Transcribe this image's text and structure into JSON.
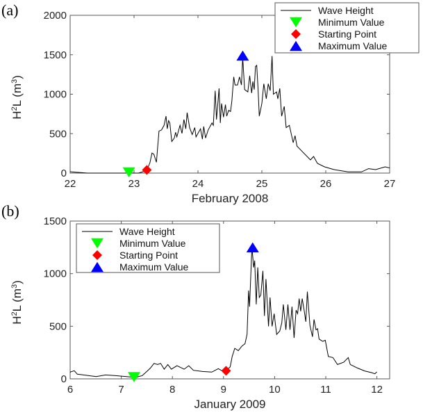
{
  "chart_data": [
    {
      "type": "line",
      "panel_label": "(a)",
      "xlabel": "February 2008",
      "ylabel": "H",
      "ylabel_sup1": "2",
      "ylabel_mid": "L (m",
      "ylabel_sup2": "3",
      "ylabel_end": ")",
      "xlim": [
        22,
        27
      ],
      "ylim": [
        0,
        2000
      ],
      "xticks": [
        22,
        23,
        24,
        25,
        26,
        27
      ],
      "yticks": [
        0,
        500,
        1000,
        1500,
        2000
      ],
      "legend_position": "top-right",
      "legend": [
        "Wave Height",
        "Minimum Value",
        "Starting Point",
        "Maximum Value"
      ],
      "series": [
        {
          "name": "Wave Height",
          "x": [
            22.0,
            22.02,
            22.27,
            22.8,
            23.07,
            23.2,
            23.25,
            23.28,
            23.31,
            23.35,
            23.39,
            23.43,
            23.47,
            23.5,
            23.52,
            23.54,
            23.56,
            23.59,
            23.63,
            23.65,
            23.67,
            23.72,
            23.75,
            23.78,
            23.81,
            23.83,
            23.87,
            23.91,
            23.95,
            23.97,
            24.04,
            24.07,
            24.09,
            24.12,
            24.16,
            24.22,
            24.24,
            24.27,
            24.29,
            24.33,
            24.35,
            24.37,
            24.4,
            24.43,
            24.45,
            24.48,
            24.51,
            24.53,
            24.56,
            24.58,
            24.62,
            24.65,
            24.68,
            24.7,
            24.73,
            24.78,
            24.81,
            24.84,
            24.86,
            24.88,
            24.9,
            24.92,
            24.94,
            24.96,
            25.0,
            25.03,
            25.07,
            25.1,
            25.13,
            25.16,
            25.18,
            25.23,
            25.25,
            25.28,
            25.31,
            25.35,
            25.38,
            25.43,
            25.49,
            25.52,
            25.55,
            25.62,
            25.76,
            25.81,
            25.87,
            25.98,
            26.13,
            26.35,
            26.56,
            26.67,
            26.78,
            26.93,
            27.0
          ],
          "y": [
            20,
            15,
            0,
            0,
            0,
            32,
            137,
            254,
            240,
            137,
            532,
            547,
            605,
            722,
            561,
            664,
            635,
            400,
            444,
            517,
            459,
            605,
            503,
            678,
            561,
            766,
            576,
            488,
            576,
            459,
            561,
            430,
            591,
            444,
            547,
            635,
            605,
            1044,
            678,
            1073,
            635,
            883,
            708,
            868,
            722,
            795,
            781,
            912,
            1219,
            1117,
            1117,
            1219,
            1117,
            1468,
            1059,
            1029,
            1234,
            1015,
            1161,
            1059,
            1351,
            1366,
            1073,
            722,
            883,
            1132,
            942,
            1132,
            1044,
            1483,
            1000,
            1029,
            942,
            1073,
            722,
            845,
            576,
            605,
            386,
            474,
            342,
            284,
            167,
            211,
            123,
            79,
            44,
            15,
            15,
            56,
            44,
            79,
            64
          ]
        }
      ],
      "markers": {
        "minimum": [
          22.92,
          0
        ],
        "starting_point": [
          23.2,
          40
        ],
        "maximum": [
          24.7,
          1490
        ]
      }
    },
    {
      "type": "line",
      "panel_label": "(b)",
      "xlabel": "January 2009",
      "ylabel": "H",
      "ylabel_sup1": "2",
      "ylabel_mid": "L (m",
      "ylabel_sup2": "3",
      "ylabel_end": ")",
      "xlim": [
        6,
        12.25
      ],
      "ylim": [
        0,
        1500
      ],
      "xticks": [
        6,
        7,
        8,
        9,
        10,
        11,
        12
      ],
      "yticks": [
        0,
        500,
        1000,
        1500
      ],
      "legend_position": "top-left",
      "legend": [
        "Wave Height",
        "Minimum Value",
        "Starting Point",
        "Maximum Value"
      ],
      "series": [
        {
          "name": "Wave Height",
          "x": [
            6.0,
            6.01,
            6.08,
            6.14,
            6.33,
            6.51,
            6.69,
            6.87,
            7.14,
            7.28,
            7.41,
            7.5,
            7.57,
            7.64,
            7.71,
            7.77,
            7.84,
            7.91,
            7.98,
            8.09,
            8.23,
            8.32,
            8.41,
            8.59,
            8.77,
            8.9,
            8.99,
            9.05,
            9.13,
            9.17,
            9.22,
            9.29,
            9.36,
            9.42,
            9.46,
            9.49,
            9.51,
            9.55,
            9.56,
            9.59,
            9.61,
            9.64,
            9.67,
            9.7,
            9.73,
            9.77,
            9.8,
            9.83,
            9.88,
            9.91,
            9.95,
            9.99,
            10.04,
            10.1,
            10.14,
            10.17,
            10.22,
            10.26,
            10.3,
            10.34,
            10.38,
            10.42,
            10.45,
            10.48,
            10.51,
            10.54,
            10.58,
            10.61,
            10.64,
            10.69,
            10.74,
            10.77,
            10.81,
            10.84,
            10.87,
            10.94,
            10.99,
            11.05,
            11.14,
            11.23,
            11.35,
            11.44,
            11.48,
            11.62,
            11.76,
            11.9,
            11.96,
            12.0
          ],
          "y": [
            60,
            66,
            77,
            44,
            33,
            22,
            37,
            31,
            20,
            13,
            31,
            70,
            103,
            147,
            136,
            147,
            92,
            136,
            92,
            125,
            92,
            125,
            81,
            70,
            64,
            97,
            70,
            77,
            114,
            213,
            290,
            268,
            312,
            334,
            422,
            840,
            686,
            1191,
            1235,
            1059,
            1125,
            708,
            1059,
            774,
            796,
            1026,
            598,
            949,
            499,
            774,
            499,
            620,
            422,
            455,
            532,
            708,
            466,
            708,
            466,
            686,
            389,
            653,
            620,
            763,
            642,
            763,
            642,
            543,
            829,
            510,
            400,
            565,
            466,
            477,
            378,
            356,
            367,
            213,
            202,
            136,
            158,
            202,
            136,
            103,
            75,
            59,
            48,
            66
          ]
        }
      ],
      "markers": {
        "minimum": [
          7.25,
          10
        ],
        "starting_point": [
          9.05,
          77
        ],
        "maximum": [
          9.57,
          1250
        ]
      }
    }
  ],
  "colors": {
    "line": "#000000",
    "minimum": "#00ff00",
    "starting_point": "#ff0000",
    "maximum": "#0000ff",
    "axis": "#555555"
  }
}
